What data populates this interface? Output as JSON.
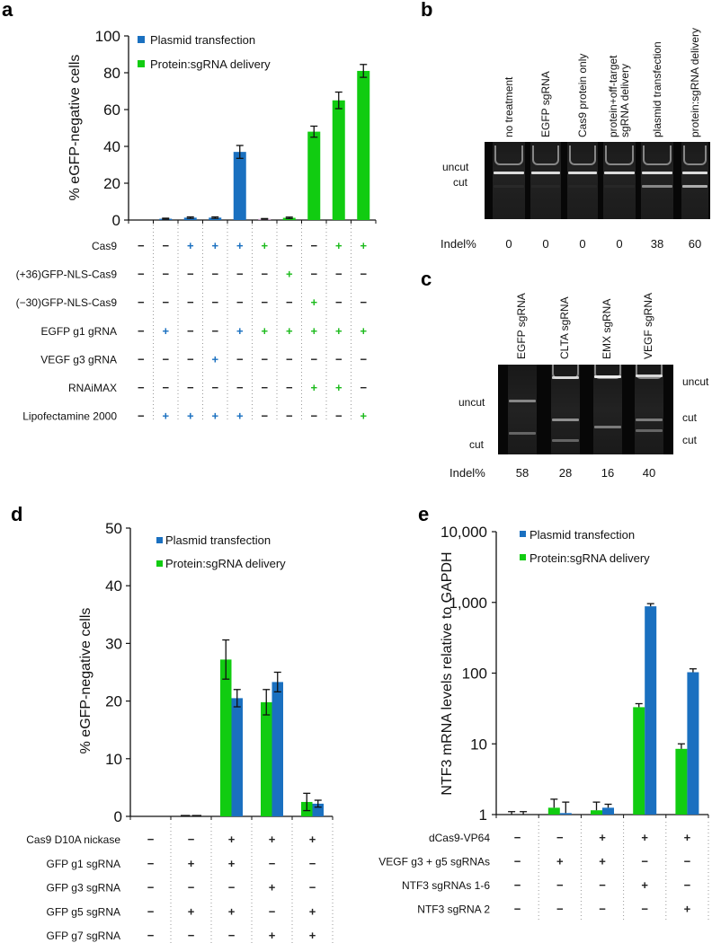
{
  "colors": {
    "plasmid": "#1a70c0",
    "protein": "#11cc11",
    "error": "#111111",
    "gel_bg": "#070707"
  },
  "panels": {
    "a": "a",
    "b": "b",
    "c": "c",
    "d": "d",
    "e": "e"
  },
  "chart_data": [
    {
      "id": "a",
      "type": "bar",
      "ylabel": "% eGFP-negative cells",
      "ylim": [
        0,
        100
      ],
      "yticks": [
        0,
        20,
        40,
        60,
        80,
        100
      ],
      "ytick_labels": [
        "0",
        "20",
        "40",
        "60",
        "80",
        "100"
      ],
      "legend": [
        {
          "name": "Plasmid transfection",
          "color": "#1a70c0"
        },
        {
          "name": "Protein:sgRNA delivery",
          "color": "#11cc11"
        }
      ],
      "legend_position": "top-left",
      "bars": [
        {
          "value": 0,
          "error": 0,
          "series": "none"
        },
        {
          "value": 0.7,
          "error": 0.3,
          "series": "plasmid"
        },
        {
          "value": 1.3,
          "error": 0.4,
          "series": "plasmid"
        },
        {
          "value": 1.3,
          "error": 0.4,
          "series": "plasmid"
        },
        {
          "value": 37,
          "error": 3.5,
          "series": "plasmid"
        },
        {
          "value": 0.6,
          "error": 0.2,
          "series": "none"
        },
        {
          "value": 1.2,
          "error": 0.4,
          "series": "protein"
        },
        {
          "value": 48,
          "error": 3,
          "series": "protein"
        },
        {
          "value": 65,
          "error": 4.5,
          "series": "protein"
        },
        {
          "value": 81,
          "error": 3.5,
          "series": "protein"
        }
      ],
      "conditions": [
        {
          "label": "Cas9",
          "marks": [
            "−",
            "−",
            "+",
            "+",
            "+",
            "+",
            "−",
            "−",
            "+",
            "+"
          ],
          "colors": [
            "k",
            "k",
            "b",
            "b",
            "b",
            "g",
            "k",
            "k",
            "g",
            "g"
          ]
        },
        {
          "label": "(+36)GFP-NLS-Cas9",
          "marks": [
            "−",
            "−",
            "−",
            "−",
            "−",
            "−",
            "+",
            "−",
            "−",
            "−"
          ],
          "colors": [
            "k",
            "k",
            "k",
            "k",
            "k",
            "k",
            "g",
            "k",
            "k",
            "k"
          ]
        },
        {
          "label": "(−30)GFP-NLS-Cas9",
          "marks": [
            "−",
            "−",
            "−",
            "−",
            "−",
            "−",
            "−",
            "+",
            "−",
            "−"
          ],
          "colors": [
            "k",
            "k",
            "k",
            "k",
            "k",
            "k",
            "k",
            "g",
            "k",
            "k"
          ]
        },
        {
          "label": "EGFP g1 gRNA",
          "marks": [
            "−",
            "+",
            "−",
            "−",
            "+",
            "+",
            "+",
            "+",
            "+",
            "+"
          ],
          "colors": [
            "k",
            "b",
            "k",
            "k",
            "b",
            "g",
            "g",
            "g",
            "g",
            "g"
          ]
        },
        {
          "label": "VEGF g3 gRNA",
          "marks": [
            "−",
            "−",
            "−",
            "+",
            "−",
            "−",
            "−",
            "−",
            "−",
            "−"
          ],
          "colors": [
            "k",
            "k",
            "k",
            "b",
            "k",
            "k",
            "k",
            "k",
            "k",
            "k"
          ]
        },
        {
          "label": "RNAiMAX",
          "marks": [
            "−",
            "−",
            "−",
            "−",
            "−",
            "−",
            "−",
            "+",
            "+",
            "−"
          ],
          "colors": [
            "k",
            "k",
            "k",
            "k",
            "k",
            "k",
            "k",
            "g",
            "g",
            "k"
          ]
        },
        {
          "label": "Lipofectamine 2000",
          "marks": [
            "−",
            "+",
            "+",
            "+",
            "+",
            "−",
            "−",
            "−",
            "−",
            "+"
          ],
          "colors": [
            "k",
            "b",
            "b",
            "b",
            "b",
            "k",
            "k",
            "k",
            "k",
            "g"
          ]
        }
      ]
    },
    {
      "id": "b",
      "type": "table",
      "lanes": [
        "no treatment",
        "EGFP sgRNA",
        "Cas9 protein only",
        "protein+off-target|sgRNA delivery",
        "plasmid transfection",
        "protein:sgRNA delivery"
      ],
      "band_labels": [
        "uncut",
        "cut"
      ],
      "indel_label": "Indel%",
      "indel": [
        "0",
        "0",
        "0",
        "0",
        "38",
        "60"
      ]
    },
    {
      "id": "c",
      "type": "table",
      "lanes": [
        "EGFP sgRNA",
        "CLTA sgRNA",
        "EMX sgRNA",
        "VEGF sgRNA"
      ],
      "left_band_labels": [
        "uncut",
        "cut"
      ],
      "right_band_labels": [
        "uncut",
        "cut",
        "cut"
      ],
      "indel_label": "Indel%",
      "indel": [
        "58",
        "28",
        "16",
        "40"
      ]
    },
    {
      "id": "d",
      "type": "bar",
      "ylabel": "% eGFP-negative cells",
      "ylim": [
        0,
        50
      ],
      "yticks": [
        0,
        10,
        20,
        30,
        40,
        50
      ],
      "ytick_labels": [
        "0",
        "10",
        "20",
        "30",
        "40",
        "50"
      ],
      "legend": [
        {
          "name": "Plasmid transfection",
          "color": "#1a70c0"
        },
        {
          "name": "Protein:sgRNA delivery",
          "color": "#11cc11"
        }
      ],
      "legend_position": "top-left",
      "series": [
        {
          "name": "Protein:sgRNA delivery",
          "values": [
            0,
            0.1,
            27.2,
            19.8,
            2.5
          ],
          "errors": [
            0,
            0,
            3.4,
            2.2,
            1.5
          ]
        },
        {
          "name": "Plasmid transfection",
          "values": [
            0,
            0.1,
            20.5,
            23.3,
            2.2
          ],
          "errors": [
            0,
            0,
            1.5,
            1.7,
            0.6
          ]
        }
      ],
      "conditions": [
        {
          "label": "Cas9 D10A nickase",
          "marks": [
            "−",
            "−",
            "+",
            "+",
            "+"
          ]
        },
        {
          "label": "GFP g1 sgRNA",
          "marks": [
            "−",
            "+",
            "+",
            "−",
            "−"
          ]
        },
        {
          "label": "GFP g3 sgRNA",
          "marks": [
            "−",
            "−",
            "−",
            "+",
            "−"
          ]
        },
        {
          "label": "GFP g5 sgRNA",
          "marks": [
            "−",
            "+",
            "+",
            "−",
            "+"
          ]
        },
        {
          "label": "GFP g7 sgRNA",
          "marks": [
            "−",
            "−",
            "−",
            "+",
            "+"
          ]
        }
      ]
    },
    {
      "id": "e",
      "type": "bar",
      "yscale": "log",
      "ylabel": "NTF3 mRNA levels relative to GAPDH",
      "ylim": [
        1,
        10000
      ],
      "yticks": [
        1,
        10,
        100,
        1000,
        10000
      ],
      "ytick_labels": [
        "1",
        "10",
        "100",
        "1,000",
        "10,000"
      ],
      "legend": [
        {
          "name": "Plasmid transfection",
          "color": "#1a70c0"
        },
        {
          "name": "Protein:sgRNA delivery",
          "color": "#11cc11"
        }
      ],
      "legend_position": "top-left",
      "series": [
        {
          "name": "Protein:sgRNA delivery",
          "values": [
            1.0,
            1.25,
            1.15,
            33,
            8.5
          ],
          "errors_upper": [
            1.1,
            1.65,
            1.5,
            37,
            10
          ]
        },
        {
          "name": "Plasmid transfection",
          "values": [
            1.0,
            1.05,
            1.25,
            880,
            103
          ],
          "errors_upper": [
            1.1,
            1.5,
            1.4,
            960,
            115
          ]
        }
      ],
      "conditions": [
        {
          "label": "dCas9-VP64",
          "marks": [
            "−",
            "−",
            "+",
            "+",
            "+"
          ]
        },
        {
          "label": "VEGF g3 + g5 sgRNAs",
          "marks": [
            "−",
            "+",
            "+",
            "−",
            "−"
          ]
        },
        {
          "label": "NTF3 sgRNAs 1-6",
          "marks": [
            "−",
            "−",
            "−",
            "+",
            "−"
          ]
        },
        {
          "label": "NTF3 sgRNA 2",
          "marks": [
            "−",
            "−",
            "−",
            "−",
            "+"
          ]
        }
      ]
    }
  ]
}
